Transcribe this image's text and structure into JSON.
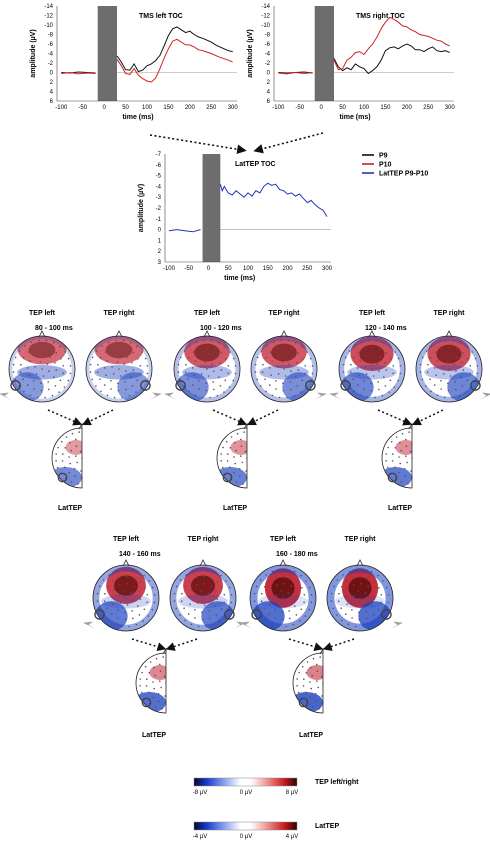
{
  "colors": {
    "p9": "#111111",
    "p10": "#d22020",
    "lattep": "#2233bb",
    "stim": "#6d6d6d",
    "red": "#c0182a",
    "blue": "#1a3fbf"
  },
  "chart_data": [
    {
      "type": "line",
      "title": "TMS left TOC",
      "xlabel": "time (ms)",
      "ylabel": "amplitude (µV)",
      "xlim": [
        -110,
        310
      ],
      "ylim": [
        6,
        -14
      ],
      "xticks": [
        -100,
        -50,
        0,
        50,
        100,
        150,
        200,
        250,
        300
      ],
      "yticks": [
        -14,
        -12,
        -10,
        -8,
        -6,
        -4,
        -2,
        0,
        2,
        4,
        6
      ],
      "stim_window_ms": [
        -15,
        30
      ],
      "series": [
        {
          "name": "P9",
          "x": [
            -100,
            -80,
            -60,
            -40,
            -20,
            30,
            40,
            50,
            60,
            70,
            80,
            90,
            100,
            110,
            120,
            130,
            140,
            150,
            160,
            170,
            180,
            190,
            200,
            210,
            220,
            230,
            240,
            250,
            260,
            270,
            280,
            290,
            300
          ],
          "y": [
            0,
            0.1,
            -0.1,
            0,
            0.1,
            -3.5,
            -2.2,
            -0.6,
            -0.5,
            -1.8,
            -0.2,
            -0.5,
            -1.4,
            -1.8,
            -2.5,
            -3.6,
            -5.6,
            -7.8,
            -9.2,
            -9.6,
            -9.0,
            -8.4,
            -8.7,
            -8.0,
            -7.5,
            -7.2,
            -6.8,
            -6.4,
            -5.8,
            -5.4,
            -5.0,
            -4.6,
            -4.4
          ]
        },
        {
          "name": "P10",
          "x": [
            -100,
            -80,
            -60,
            -40,
            -20,
            30,
            40,
            50,
            60,
            70,
            80,
            90,
            100,
            110,
            120,
            130,
            140,
            150,
            160,
            170,
            180,
            190,
            200,
            210,
            220,
            230,
            240,
            250,
            260,
            270,
            280,
            290,
            300
          ],
          "y": [
            0.2,
            0,
            0.3,
            0.1,
            0.2,
            -2.8,
            -1.4,
            0.2,
            0.4,
            -0.8,
            0.6,
            1.3,
            1.8,
            2.0,
            1.2,
            -0.8,
            -3.0,
            -5.0,
            -6.6,
            -7.0,
            -6.4,
            -5.8,
            -5.8,
            -5.4,
            -4.8,
            -4.6,
            -4.3,
            -4.0,
            -3.6,
            -3.2,
            -2.9,
            -2.6,
            -2.2
          ]
        }
      ]
    },
    {
      "type": "line",
      "title": "TMS right TOC",
      "xlabel": "time (ms)",
      "ylabel": "amplitude (µV)",
      "xlim": [
        -110,
        310
      ],
      "ylim": [
        6,
        -14
      ],
      "xticks": [
        -100,
        -50,
        0,
        50,
        100,
        150,
        200,
        250,
        300
      ],
      "yticks": [
        -14,
        -12,
        -10,
        -8,
        -6,
        -4,
        -2,
        0,
        2,
        4,
        6
      ],
      "stim_window_ms": [
        -15,
        30
      ],
      "series": [
        {
          "name": "P9",
          "x": [
            -100,
            -80,
            -60,
            -40,
            -20,
            30,
            40,
            50,
            60,
            70,
            80,
            90,
            100,
            110,
            120,
            130,
            140,
            150,
            160,
            170,
            180,
            190,
            200,
            210,
            220,
            230,
            240,
            250,
            260,
            270,
            280,
            290,
            300
          ],
          "y": [
            0,
            0.1,
            0,
            -0.1,
            0.1,
            -3.0,
            -1.2,
            -0.4,
            -1.0,
            -0.6,
            -1.8,
            -1.2,
            -0.8,
            0.2,
            -0.4,
            -1.2,
            -2.6,
            -4.6,
            -5.2,
            -5.4,
            -5.0,
            -5.6,
            -6.0,
            -5.6,
            -4.8,
            -4.8,
            -4.4,
            -5.0,
            -5.4,
            -4.6,
            -4.4,
            -4.6,
            -4.2
          ]
        },
        {
          "name": "P10",
          "x": [
            -100,
            -80,
            -60,
            -40,
            -20,
            30,
            40,
            50,
            60,
            70,
            80,
            90,
            100,
            110,
            120,
            130,
            140,
            150,
            160,
            170,
            180,
            190,
            200,
            210,
            220,
            230,
            240,
            250,
            260,
            270,
            280,
            290,
            300
          ],
          "y": [
            0.1,
            0.3,
            0,
            0.2,
            0,
            -2.6,
            -0.6,
            -0.8,
            -2.6,
            -3.2,
            -4.2,
            -4.4,
            -3.8,
            -5.0,
            -6.0,
            -7.4,
            -9.2,
            -10.6,
            -11.6,
            -11.2,
            -10.6,
            -9.8,
            -9.6,
            -9.0,
            -8.6,
            -8.0,
            -7.8,
            -7.6,
            -7.2,
            -6.8,
            -6.6,
            -6.0,
            -5.6
          ]
        }
      ]
    },
    {
      "type": "line",
      "title": "LatTEP TOC",
      "xlabel": "time (ms)",
      "ylabel": "amplitude (µV)",
      "xlim": [
        -110,
        310
      ],
      "ylim": [
        3,
        -7
      ],
      "xticks": [
        -100,
        -50,
        0,
        50,
        100,
        150,
        200,
        250,
        300
      ],
      "yticks": [
        -7,
        -6,
        -5,
        -4,
        -3,
        -2,
        -1,
        0,
        1,
        2,
        3
      ],
      "stim_window_ms": [
        -15,
        30
      ],
      "series": [
        {
          "name": "LatTEP P9-P10",
          "x": [
            -100,
            -80,
            -60,
            -40,
            -20,
            30,
            35,
            40,
            50,
            60,
            70,
            80,
            90,
            100,
            110,
            120,
            130,
            140,
            150,
            160,
            170,
            180,
            190,
            200,
            210,
            220,
            230,
            240,
            250,
            260,
            270,
            280,
            290,
            300
          ],
          "y": [
            0.1,
            0,
            0.1,
            0.2,
            0,
            -4.2,
            -3.6,
            -4.0,
            -3.4,
            -3.2,
            -3.6,
            -3.3,
            -3.0,
            -3.4,
            -3.1,
            -3.6,
            -3.4,
            -4.0,
            -4.3,
            -4.1,
            -4.2,
            -3.7,
            -3.6,
            -3.3,
            -3.4,
            -3.1,
            -3.3,
            -2.9,
            -2.5,
            -2.7,
            -2.3,
            -2.0,
            -1.8,
            -1.2
          ]
        }
      ]
    }
  ],
  "legend": {
    "p9": "P9",
    "p10": "P10",
    "lattep": "LatTEP P9-P10"
  },
  "topo_labels": {
    "left": "TEP left",
    "right": "TEP right",
    "lat": "LatTEP"
  },
  "windows": [
    {
      "time": "80 - 100 ms",
      "strength": 0.45
    },
    {
      "time": "100 - 120 ms",
      "strength": 0.6
    },
    {
      "time": "120 - 140 ms",
      "strength": 0.7
    },
    {
      "time": "140 - 160 ms",
      "strength": 0.85
    },
    {
      "time": "160 - 180 ms",
      "strength": 1.0
    }
  ],
  "colorbars": {
    "tep": {
      "min": "-8 µV",
      "mid": "0 µV",
      "max": "8 µV",
      "label": "TEP left/right"
    },
    "lat": {
      "min": "-4 µV",
      "mid": "0 µV",
      "max": "4 µV",
      "label": "LatTEP"
    }
  }
}
